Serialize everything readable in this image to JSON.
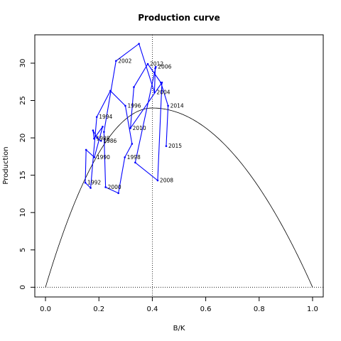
{
  "chart_data": {
    "type": "line",
    "title": "Production curve",
    "xlabel": "B/K",
    "ylabel": "Production",
    "xlim": [
      -0.04,
      1.04
    ],
    "ylim": [
      -1.3,
      33.8
    ],
    "xticks": [
      "0.0",
      "0.2",
      "0.4",
      "0.6",
      "0.8",
      "1.0"
    ],
    "yticks": [
      "0",
      "5",
      "10",
      "15",
      "20",
      "25",
      "30"
    ],
    "grid": false,
    "colors": {
      "series": "#0000ff",
      "curve": "#000000",
      "reference": "#000000"
    },
    "reference_lines": {
      "vertical_x": 0.4,
      "horizontal_y": 0
    },
    "curve": {
      "name": "",
      "form": "parabola",
      "r_times_K_over_4": 24.0,
      "x_at_max": 0.4
    },
    "series": [
      {
        "name": "",
        "points": [
          {
            "x": 0.208,
            "y": 19.6,
            "label": "1986"
          },
          {
            "x": 0.193,
            "y": 20.0,
            "label": ""
          },
          {
            "x": 0.178,
            "y": 21.0,
            "label": ""
          },
          {
            "x": 0.182,
            "y": 19.9,
            "label": "1988"
          },
          {
            "x": 0.214,
            "y": 21.5,
            "label": ""
          },
          {
            "x": 0.183,
            "y": 17.4,
            "label": "1990"
          },
          {
            "x": 0.152,
            "y": 18.4,
            "label": ""
          },
          {
            "x": 0.149,
            "y": 14.0,
            "label": "1992"
          },
          {
            "x": 0.169,
            "y": 13.3,
            "label": ""
          },
          {
            "x": 0.192,
            "y": 22.8,
            "label": "1994"
          },
          {
            "x": 0.243,
            "y": 26.3,
            "label": ""
          },
          {
            "x": 0.299,
            "y": 24.3,
            "label": "1996"
          },
          {
            "x": 0.324,
            "y": 19.2,
            "label": ""
          },
          {
            "x": 0.297,
            "y": 17.4,
            "label": "1998"
          },
          {
            "x": 0.273,
            "y": 12.6,
            "label": ""
          },
          {
            "x": 0.225,
            "y": 13.4,
            "label": "2000"
          },
          {
            "x": 0.219,
            "y": 20.8,
            "label": ""
          },
          {
            "x": 0.264,
            "y": 30.3,
            "label": "2002"
          },
          {
            "x": 0.35,
            "y": 32.6,
            "label": ""
          },
          {
            "x": 0.408,
            "y": 26.1,
            "label": "2004"
          },
          {
            "x": 0.411,
            "y": 29.3,
            "label": ""
          },
          {
            "x": 0.413,
            "y": 29.5,
            "label": "2006"
          },
          {
            "x": 0.336,
            "y": 16.7,
            "label": ""
          },
          {
            "x": 0.42,
            "y": 14.3,
            "label": "2008"
          },
          {
            "x": 0.436,
            "y": 27.4,
            "label": ""
          },
          {
            "x": 0.318,
            "y": 21.3,
            "label": "2010"
          },
          {
            "x": 0.331,
            "y": 26.8,
            "label": ""
          },
          {
            "x": 0.383,
            "y": 29.9,
            "label": "2012"
          },
          {
            "x": 0.432,
            "y": 27.4,
            "label": ""
          },
          {
            "x": 0.459,
            "y": 24.3,
            "label": "2014"
          },
          {
            "x": 0.452,
            "y": 18.9,
            "label": "2015"
          }
        ]
      }
    ]
  }
}
